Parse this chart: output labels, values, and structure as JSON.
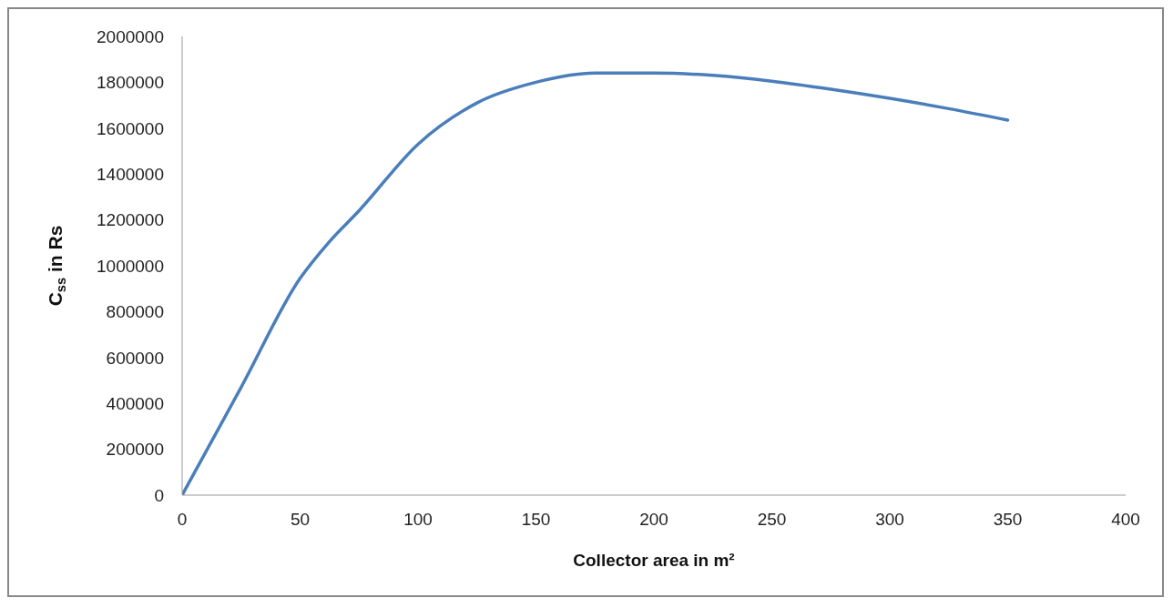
{
  "chart_data": {
    "type": "line",
    "xlabel": "Collector area in m²",
    "ylabel": "C$_{ss}$ in Rs",
    "x": [
      0,
      25,
      50,
      62,
      75,
      100,
      125,
      150,
      175,
      200,
      225,
      250,
      275,
      300,
      325,
      350
    ],
    "series": [
      {
        "color": "#4a7ebb",
        "values": [
          0,
          470000,
          945000,
          1100000,
          1240000,
          1530000,
          1710000,
          1800000,
          1840000,
          1840000,
          1830000,
          1805000,
          1770000,
          1730000,
          1685000,
          1635000
        ]
      }
    ],
    "xlim": [
      0,
      400
    ],
    "xticks": [
      0,
      50,
      100,
      150,
      200,
      250,
      300,
      350,
      400
    ],
    "ylim": [
      0,
      2000000
    ],
    "yticks": [
      0,
      200000,
      400000,
      600000,
      800000,
      1000000,
      1200000,
      1400000,
      1600000,
      1800000,
      2000000
    ],
    "grid": false,
    "legend": false,
    "marker": "none",
    "line_style": "solid"
  }
}
